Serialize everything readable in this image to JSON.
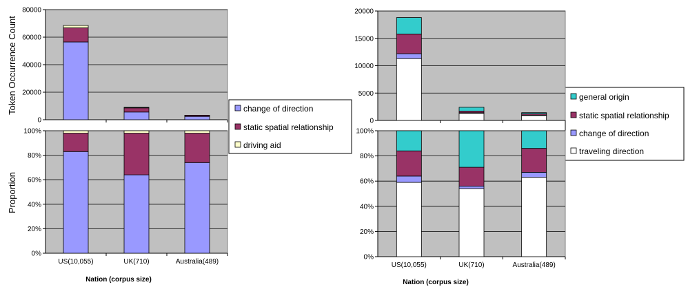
{
  "colors": {
    "plot_bg": "#c0c0c0",
    "gridline": "#000000",
    "change_of_direction": "#9999ff",
    "static_spatial_relationship": "#993366",
    "driving_aid": "#ffffcc",
    "general_origin": "#33cccc",
    "traveling_direction": "#ffffff"
  },
  "left": {
    "ylabel_top": "Token Occurrence Count",
    "ylabel_bottom": "Proportion",
    "xlabel": "Nation (corpus size)",
    "legend": [
      "change of direction",
      "static spatial relationship",
      "driving aid"
    ]
  },
  "right": {
    "xlabel": "Nation (corpus size)",
    "legend": [
      "general origin",
      "static spatial relationship",
      "change of direction",
      "traveling direction"
    ]
  },
  "chart_data": [
    {
      "type": "bar",
      "stacked": true,
      "categories": [
        "US(10,055)",
        "UK(710)",
        "Australia(489)"
      ],
      "series": [
        {
          "name": "change of direction",
          "color": "#9999ff",
          "values": [
            56500,
            5600,
            2400
          ]
        },
        {
          "name": "static spatial relationship",
          "color": "#993366",
          "values": [
            10300,
            3000,
            800
          ]
        },
        {
          "name": "driving aid",
          "color": "#ffffcc",
          "values": [
            1700,
            400,
            100
          ]
        }
      ],
      "ylabel": "Token Occurrence Count",
      "ylim": [
        0,
        80000
      ],
      "yticks": [
        0,
        20000,
        40000,
        60000,
        80000
      ],
      "ytick_labels": [
        "0",
        "20000",
        "40000",
        "60000",
        "80000"
      ],
      "grid": true
    },
    {
      "type": "bar",
      "stacked": true,
      "percent": true,
      "categories": [
        "US(10,055)",
        "UK(710)",
        "Australia(489)"
      ],
      "series": [
        {
          "name": "change of direction",
          "color": "#9999ff",
          "values": [
            83,
            64,
            74
          ]
        },
        {
          "name": "static spatial relationship",
          "color": "#993366",
          "values": [
            15,
            34,
            24
          ]
        },
        {
          "name": "driving aid",
          "color": "#ffffcc",
          "values": [
            2,
            2,
            2
          ]
        }
      ],
      "ylabel": "Proportion",
      "xlabel": "Nation (corpus size)",
      "ylim": [
        0,
        100
      ],
      "yticks": [
        0,
        20,
        40,
        60,
        80,
        100
      ],
      "ytick_labels": [
        "0%",
        "20%",
        "40%",
        "60%",
        "80%",
        "100%"
      ],
      "grid": true
    },
    {
      "type": "bar",
      "stacked": true,
      "categories": [
        "US(10,055)",
        "UK(710)",
        "Australia(489)"
      ],
      "series": [
        {
          "name": "traveling direction",
          "color": "#ffffff",
          "values": [
            11300,
            1300,
            900
          ]
        },
        {
          "name": "change of direction",
          "color": "#9999ff",
          "values": [
            900,
            100,
            70
          ]
        },
        {
          "name": "static spatial relationship",
          "color": "#993366",
          "values": [
            3600,
            300,
            250
          ]
        },
        {
          "name": "general origin",
          "color": "#33cccc",
          "values": [
            3000,
            700,
            200
          ]
        }
      ],
      "ylim": [
        0,
        20000
      ],
      "yticks": [
        0,
        5000,
        10000,
        15000,
        20000
      ],
      "ytick_labels": [
        "0",
        "5000",
        "10000",
        "15000",
        "20000"
      ],
      "grid": true
    },
    {
      "type": "bar",
      "stacked": true,
      "percent": true,
      "categories": [
        "US(10,055)",
        "UK(710)",
        "Australia(489)"
      ],
      "series": [
        {
          "name": "traveling direction",
          "color": "#ffffff",
          "values": [
            59,
            54,
            63
          ]
        },
        {
          "name": "change of direction",
          "color": "#9999ff",
          "values": [
            5,
            2,
            4
          ]
        },
        {
          "name": "static spatial relationship",
          "color": "#993366",
          "values": [
            20,
            15,
            19
          ]
        },
        {
          "name": "general origin",
          "color": "#33cccc",
          "values": [
            16,
            29,
            14
          ]
        }
      ],
      "xlabel": "Nation (corpus size)",
      "ylim": [
        0,
        100
      ],
      "yticks": [
        0,
        20,
        40,
        60,
        80,
        100
      ],
      "ytick_labels": [
        "0%",
        "20%",
        "40%",
        "60%",
        "80%",
        "100%"
      ],
      "grid": true
    }
  ]
}
